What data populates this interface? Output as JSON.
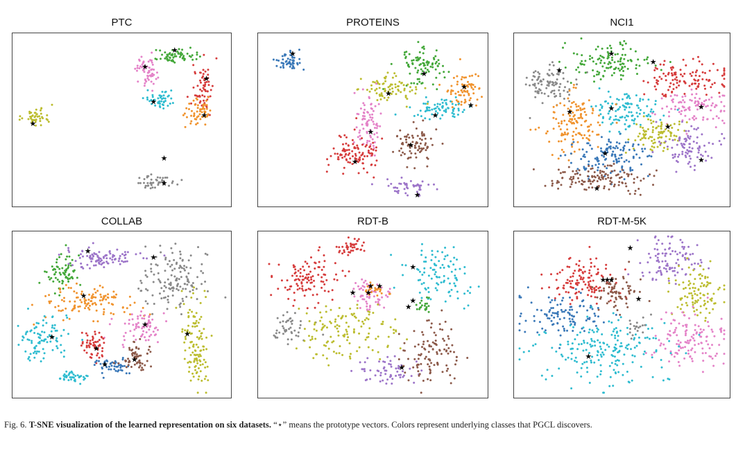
{
  "figure": {
    "caption_label": "Fig. 6.",
    "caption_bold": "T-SNE visualization of the learned representation on six datasets.",
    "caption_rest": "“⋆” means the prototype vectors. Colors represent underlying classes that PGCL discovers."
  },
  "colors": {
    "blue": "#3a78b8",
    "orange": "#f0932e",
    "green": "#44a83a",
    "red": "#d63c3c",
    "purple": "#9d75c9",
    "brown": "#8c5a4a",
    "pink": "#e483c8",
    "gray": "#8a8a8a",
    "olive": "#bcbd30",
    "cyan": "#2fbcd0"
  },
  "chart_data": [
    {
      "type": "scatter",
      "title": "PTC",
      "xlim": [
        0,
        100
      ],
      "ylim": [
        0,
        100
      ],
      "clusters": [
        {
          "color": "pink",
          "x": 62,
          "y": 80,
          "sx": 2.5,
          "sy": 5,
          "n": 60
        },
        {
          "color": "green",
          "x": 74,
          "y": 88,
          "sx": 5,
          "sy": 2,
          "n": 60
        },
        {
          "color": "red",
          "x": 88,
          "y": 70,
          "sx": 2.5,
          "sy": 7,
          "n": 60
        },
        {
          "color": "orange",
          "x": 87,
          "y": 55,
          "sx": 4,
          "sy": 4,
          "n": 55
        },
        {
          "color": "cyan",
          "x": 68,
          "y": 62,
          "sx": 3,
          "sy": 3,
          "n": 45
        },
        {
          "color": "olive",
          "x": 10,
          "y": 52,
          "sx": 3.5,
          "sy": 3,
          "n": 45
        },
        {
          "color": "gray",
          "x": 66,
          "y": 13,
          "sx": 5,
          "sy": 2,
          "n": 45
        }
      ],
      "prototypes": [
        [
          75,
          92
        ],
        [
          61,
          82
        ],
        [
          90,
          75
        ],
        [
          89,
          53
        ],
        [
          65,
          61
        ],
        [
          8,
          48
        ],
        [
          70,
          27
        ],
        [
          70,
          12
        ]
      ]
    },
    {
      "type": "scatter",
      "title": "PROTEINS",
      "xlim": [
        0,
        100
      ],
      "ylim": [
        0,
        100
      ],
      "clusters": [
        {
          "color": "blue",
          "x": 12,
          "y": 85,
          "sx": 3,
          "sy": 3,
          "n": 50
        },
        {
          "color": "green",
          "x": 71,
          "y": 82,
          "sx": 5,
          "sy": 5,
          "n": 90
        },
        {
          "color": "olive",
          "x": 57,
          "y": 68,
          "sx": 6,
          "sy": 4,
          "n": 80
        },
        {
          "color": "orange",
          "x": 91,
          "y": 68,
          "sx": 4,
          "sy": 5,
          "n": 70
        },
        {
          "color": "cyan",
          "x": 80,
          "y": 57,
          "sx": 6,
          "sy": 3,
          "n": 70
        },
        {
          "color": "pink",
          "x": 48,
          "y": 48,
          "sx": 3,
          "sy": 9,
          "n": 80
        },
        {
          "color": "red",
          "x": 42,
          "y": 30,
          "sx": 6,
          "sy": 6,
          "n": 100
        },
        {
          "color": "brown",
          "x": 68,
          "y": 35,
          "sx": 5,
          "sy": 6,
          "n": 80
        },
        {
          "color": "purple",
          "x": 67,
          "y": 9,
          "sx": 5,
          "sy": 2,
          "n": 45
        }
      ],
      "prototypes": [
        [
          14,
          90
        ],
        [
          73,
          78
        ],
        [
          57,
          66
        ],
        [
          91,
          70
        ],
        [
          94,
          59
        ],
        [
          78,
          53
        ],
        [
          49,
          43
        ],
        [
          42,
          25
        ],
        [
          67,
          35
        ],
        [
          70,
          5
        ]
      ]
    },
    {
      "type": "scatter",
      "title": "NCI1",
      "xlim": [
        0,
        100
      ],
      "ylim": [
        0,
        100
      ],
      "clusters": [
        {
          "color": "gray",
          "x": 15,
          "y": 72,
          "sx": 6,
          "sy": 6,
          "n": 90
        },
        {
          "color": "green",
          "x": 45,
          "y": 85,
          "sx": 9,
          "sy": 5,
          "n": 120
        },
        {
          "color": "red",
          "x": 80,
          "y": 75,
          "sx": 10,
          "sy": 5,
          "n": 120
        },
        {
          "color": "pink",
          "x": 85,
          "y": 58,
          "sx": 8,
          "sy": 5,
          "n": 100
        },
        {
          "color": "cyan",
          "x": 52,
          "y": 55,
          "sx": 8,
          "sy": 6,
          "n": 110
        },
        {
          "color": "orange",
          "x": 27,
          "y": 48,
          "sx": 7,
          "sy": 10,
          "n": 130
        },
        {
          "color": "olive",
          "x": 67,
          "y": 42,
          "sx": 6,
          "sy": 5,
          "n": 90
        },
        {
          "color": "blue",
          "x": 45,
          "y": 28,
          "sx": 9,
          "sy": 6,
          "n": 130
        },
        {
          "color": "purple",
          "x": 82,
          "y": 33,
          "sx": 7,
          "sy": 6,
          "n": 90
        },
        {
          "color": "brown",
          "x": 40,
          "y": 14,
          "sx": 12,
          "sy": 4,
          "n": 130
        }
      ],
      "prototypes": [
        [
          20,
          80
        ],
        [
          45,
          90
        ],
        [
          65,
          85
        ],
        [
          88,
          58
        ],
        [
          45,
          57
        ],
        [
          25,
          55
        ],
        [
          72,
          46
        ],
        [
          42,
          30
        ],
        [
          88,
          26
        ],
        [
          38,
          9
        ]
      ]
    },
    {
      "type": "scatter",
      "title": "COLLAB",
      "xlim": [
        0,
        100
      ],
      "ylim": [
        0,
        100
      ],
      "clusters": [
        {
          "color": "green",
          "x": 22,
          "y": 76,
          "sx": 4,
          "sy": 6,
          "n": 70
        },
        {
          "color": "purple",
          "x": 40,
          "y": 86,
          "sx": 9,
          "sy": 3,
          "n": 100
        },
        {
          "color": "gray",
          "x": 75,
          "y": 72,
          "sx": 9,
          "sy": 10,
          "n": 140
        },
        {
          "color": "olive",
          "x": 85,
          "y": 30,
          "sx": 3,
          "sy": 15,
          "n": 120
        },
        {
          "color": "orange",
          "x": 35,
          "y": 58,
          "sx": 12,
          "sy": 5,
          "n": 120
        },
        {
          "color": "pink",
          "x": 59,
          "y": 42,
          "sx": 5,
          "sy": 5,
          "n": 70
        },
        {
          "color": "cyan",
          "x": 12,
          "y": 35,
          "sx": 6,
          "sy": 7,
          "n": 90
        },
        {
          "color": "red",
          "x": 36,
          "y": 32,
          "sx": 3,
          "sy": 5,
          "n": 60
        },
        {
          "color": "blue",
          "x": 45,
          "y": 18,
          "sx": 5,
          "sy": 3,
          "n": 50
        },
        {
          "color": "brown",
          "x": 57,
          "y": 22,
          "sx": 4,
          "sy": 5,
          "n": 60
        },
        {
          "color": "cyan",
          "x": 27,
          "y": 11,
          "sx": 4,
          "sy": 2,
          "n": 40
        }
      ],
      "prototypes": [
        [
          34,
          90
        ],
        [
          65,
          86
        ],
        [
          32,
          62
        ],
        [
          61,
          44
        ],
        [
          17,
          36
        ],
        [
          38,
          29
        ],
        [
          81,
          38
        ],
        [
          56,
          22
        ],
        [
          42,
          19
        ]
      ]
    },
    {
      "type": "scatter",
      "title": "RDT-B",
      "xlim": [
        0,
        100
      ],
      "ylim": [
        0,
        100
      ],
      "clusters": [
        {
          "color": "red",
          "x": 20,
          "y": 72,
          "sx": 7,
          "sy": 8,
          "n": 110
        },
        {
          "color": "red",
          "x": 40,
          "y": 92,
          "sx": 3,
          "sy": 3,
          "n": 40
        },
        {
          "color": "gray",
          "x": 12,
          "y": 40,
          "sx": 4,
          "sy": 5,
          "n": 45
        },
        {
          "color": "pink",
          "x": 49,
          "y": 62,
          "sx": 4,
          "sy": 5,
          "n": 60
        },
        {
          "color": "orange",
          "x": 52,
          "y": 66,
          "sx": 3,
          "sy": 2,
          "n": 25
        },
        {
          "color": "olive",
          "x": 38,
          "y": 40,
          "sx": 10,
          "sy": 9,
          "n": 130
        },
        {
          "color": "purple",
          "x": 55,
          "y": 15,
          "sx": 6,
          "sy": 4,
          "n": 60
        },
        {
          "color": "brown",
          "x": 76,
          "y": 26,
          "sx": 6,
          "sy": 10,
          "n": 110
        },
        {
          "color": "cyan",
          "x": 80,
          "y": 75,
          "sx": 8,
          "sy": 9,
          "n": 100
        },
        {
          "color": "green",
          "x": 73,
          "y": 54,
          "sx": 2,
          "sy": 3,
          "n": 20
        }
      ],
      "prototypes": [
        [
          49,
          68
        ],
        [
          53,
          68
        ],
        [
          41,
          64
        ],
        [
          48,
          64
        ],
        [
          68,
          80
        ],
        [
          68,
          59
        ],
        [
          66,
          55
        ],
        [
          63,
          17
        ]
      ]
    },
    {
      "type": "scatter",
      "title": "RDT-M-5K",
      "xlim": [
        0,
        100
      ],
      "ylim": [
        0,
        100
      ],
      "clusters": [
        {
          "color": "red",
          "x": 32,
          "y": 72,
          "sx": 9,
          "sy": 7,
          "n": 120
        },
        {
          "color": "brown",
          "x": 47,
          "y": 63,
          "sx": 5,
          "sy": 5,
          "n": 70
        },
        {
          "color": "purple",
          "x": 74,
          "y": 83,
          "sx": 8,
          "sy": 7,
          "n": 100
        },
        {
          "color": "olive",
          "x": 85,
          "y": 65,
          "sx": 6,
          "sy": 8,
          "n": 100
        },
        {
          "color": "pink",
          "x": 82,
          "y": 35,
          "sx": 8,
          "sy": 10,
          "n": 130
        },
        {
          "color": "blue",
          "x": 22,
          "y": 50,
          "sx": 10,
          "sy": 6,
          "n": 110
        },
        {
          "color": "cyan",
          "x": 40,
          "y": 28,
          "sx": 16,
          "sy": 10,
          "n": 200
        },
        {
          "color": "gray",
          "x": 57,
          "y": 43,
          "sx": 3,
          "sy": 3,
          "n": 20
        }
      ],
      "prototypes": [
        [
          54,
          92
        ],
        [
          41,
          72
        ],
        [
          43,
          72
        ],
        [
          45,
          72
        ],
        [
          58,
          60
        ],
        [
          34,
          24
        ]
      ]
    }
  ]
}
